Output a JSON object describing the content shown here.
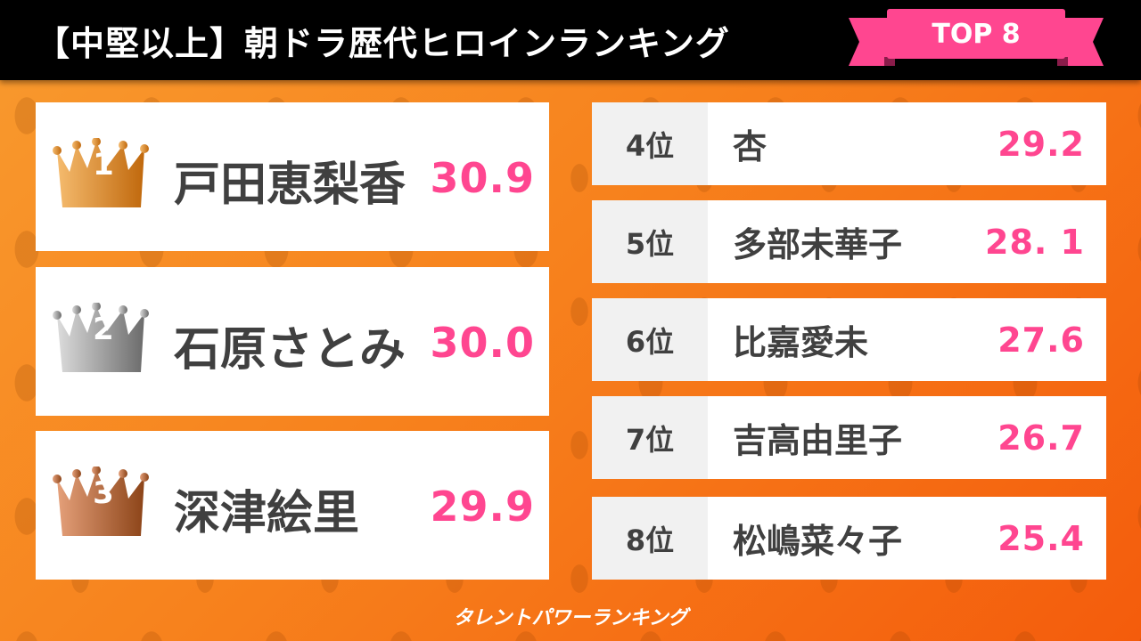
{
  "header": {
    "title": "【中堅以上】朝ドラ歴代ヒロインランキング",
    "badge": "TOP 8"
  },
  "colors": {
    "accent": "#ff4690",
    "header_bg": "#000000",
    "background": "#f7821d",
    "gold": "#c8701a",
    "silver": "#7a7a7a",
    "bronze": "#a0522d"
  },
  "top3": [
    {
      "rank": "1",
      "name": "戸田恵梨香",
      "score": "30.9",
      "icon": "gold-crown-icon"
    },
    {
      "rank": "2",
      "name": "石原さとみ",
      "score": "30.0",
      "icon": "silver-crown-icon"
    },
    {
      "rank": "3",
      "name": "深津絵里",
      "score": "29.9",
      "icon": "bronze-crown-icon"
    }
  ],
  "others": [
    {
      "rank": "4位",
      "name": "杏",
      "score": "29.2"
    },
    {
      "rank": "5位",
      "name": "多部未華子",
      "score": "28. 1"
    },
    {
      "rank": "6位",
      "name": "比嘉愛未",
      "score": "27.6"
    },
    {
      "rank": "7位",
      "name": "吉高由里子",
      "score": "26.7"
    },
    {
      "rank": "8位",
      "name": "松嶋菜々子",
      "score": "25.4"
    }
  ],
  "footer": {
    "logo": "タレントパワーランキング"
  }
}
